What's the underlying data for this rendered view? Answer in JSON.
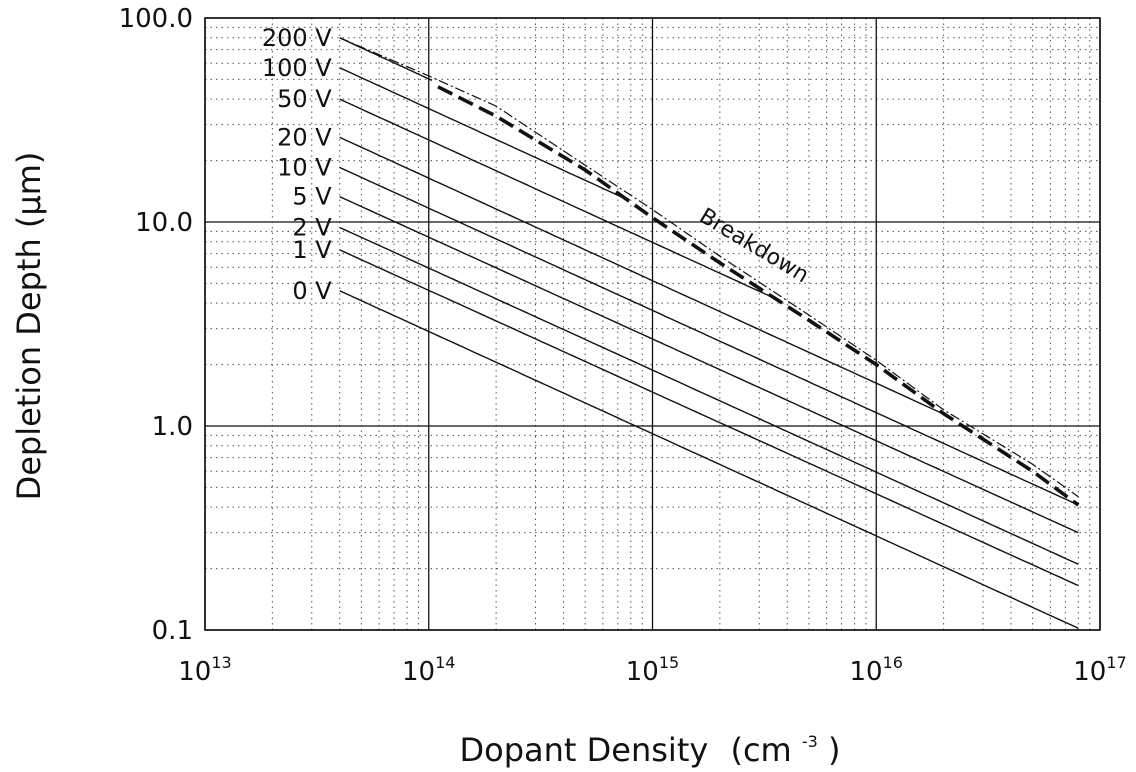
{
  "chart_data": {
    "type": "line",
    "title": "",
    "xlabel": "Dopant Density",
    "xlabel_unit_base": "(cm",
    "xlabel_unit_exp": "-3",
    "xlabel_unit_close": ")",
    "ylabel": "Depletion Depth (μm)",
    "xscale": "log",
    "yscale": "log",
    "xlim": [
      10000000000000.0,
      1e+17
    ],
    "ylim": [
      0.1,
      100
    ],
    "grid": true,
    "x_ticks": [
      {
        "base": "10",
        "exp": "13",
        "value": 10000000000000.0
      },
      {
        "base": "10",
        "exp": "14",
        "value": 100000000000000.0
      },
      {
        "base": "10",
        "exp": "15",
        "value": 1000000000000000.0
      },
      {
        "base": "10",
        "exp": "16",
        "value": 1e+16
      },
      {
        "base": "10",
        "exp": "17",
        "value": 1e+17
      }
    ],
    "y_ticks": [
      {
        "label": "0.1",
        "value": 0.1
      },
      {
        "label": "1.0",
        "value": 1
      },
      {
        "label": "10.0",
        "value": 10
      },
      {
        "label": "100.0",
        "value": 100
      }
    ],
    "series": [
      {
        "name": "200 V",
        "x": [
          40000000000000.0,
          8e+16
        ],
        "y": [
          80,
          1.7
        ],
        "clip_to_breakdown": true
      },
      {
        "name": "100 V",
        "x": [
          40000000000000.0,
          8e+16
        ],
        "y": [
          57,
          1.25
        ],
        "clip_to_breakdown": true
      },
      {
        "name": "50 V",
        "x": [
          40000000000000.0,
          8e+16
        ],
        "y": [
          40,
          0.88
        ],
        "clip_to_breakdown": true
      },
      {
        "name": "20 V",
        "x": [
          40000000000000.0,
          8e+16
        ],
        "y": [
          26,
          0.57
        ],
        "clip_to_breakdown": true
      },
      {
        "name": "10 V",
        "x": [
          40000000000000.0,
          8e+16
        ],
        "y": [
          18.5,
          0.41
        ],
        "clip_to_breakdown": true
      },
      {
        "name": "5 V",
        "x": [
          40000000000000.0,
          8e+16
        ],
        "y": [
          13.3,
          0.3
        ],
        "clip_to_breakdown": false
      },
      {
        "name": "2 V",
        "x": [
          40000000000000.0,
          8e+16
        ],
        "y": [
          9.4,
          0.21
        ],
        "clip_to_breakdown": false
      },
      {
        "name": "1 V",
        "x": [
          40000000000000.0,
          8e+16
        ],
        "y": [
          7.3,
          0.165
        ],
        "clip_to_breakdown": false
      },
      {
        "name": "0 V",
        "x": [
          40000000000000.0,
          8e+16
        ],
        "y": [
          4.6,
          0.102
        ],
        "clip_to_breakdown": false
      }
    ],
    "breakdown": {
      "label": "Breakdown",
      "x": [
        110000000000000.0,
        200000000000000.0,
        500000000000000.0,
        1000000000000000.0,
        2000000000000000.0,
        5000000000000000.0,
        1e+16,
        2e+16,
        5e+16,
        8e+16
      ],
      "y": [
        46,
        33,
        18,
        10.5,
        6.3,
        3.3,
        2.0,
        1.15,
        0.6,
        0.41
      ]
    },
    "breakdown_envelope": {
      "x": [
        40000000000000.0,
        100000000000000.0,
        200000000000000.0,
        500000000000000.0,
        1000000000000000.0,
        2000000000000000.0,
        5000000000000000.0,
        1e+16,
        2e+16,
        5e+16,
        8e+16
      ],
      "y": [
        80,
        52,
        37,
        19,
        11.5,
        6.8,
        3.5,
        2.1,
        1.2,
        0.65,
        0.45
      ]
    }
  }
}
